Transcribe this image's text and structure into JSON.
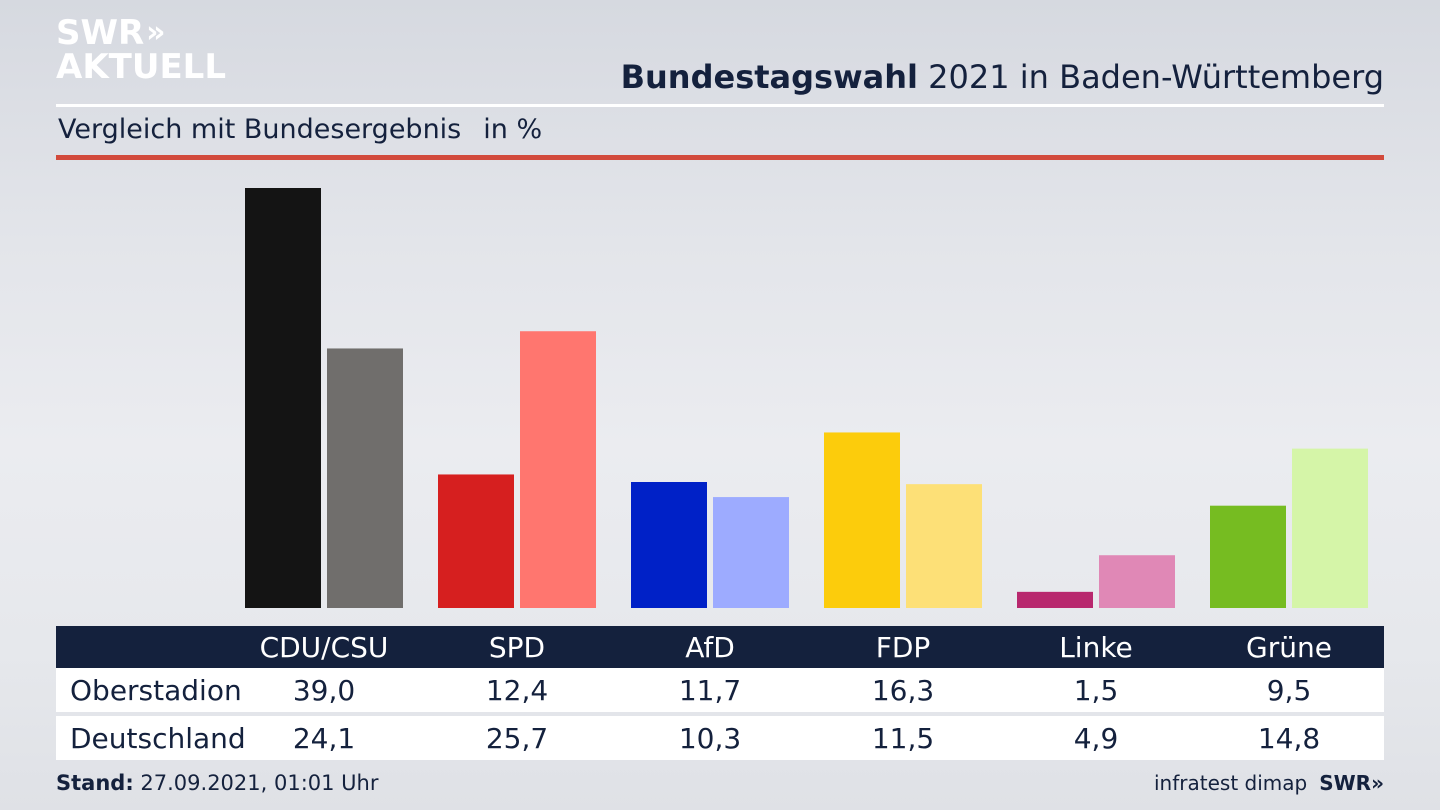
{
  "logo": {
    "line1": "SWR",
    "chevrons": "»",
    "line2": "AKTUELL"
  },
  "header": {
    "title_bold": "Bundestagswahl",
    "title_rest": " 2021 in Baden-Württemberg",
    "subtitle": "Vergleich mit Bundesergebnis",
    "unit": "in %"
  },
  "footer": {
    "stand_label": "Stand:",
    "stand_value": " 27.09.2021, 01:01 Uhr",
    "source": "infratest dimap",
    "brand": "SWR»"
  },
  "chart_data": {
    "type": "bar",
    "title": "Bundestagswahl 2021 in Baden-Württemberg",
    "subtitle": "Vergleich mit Bundesergebnis in %",
    "categories": [
      "CDU/CSU",
      "SPD",
      "AfD",
      "FDP",
      "Linke",
      "Grüne"
    ],
    "series": [
      {
        "name": "Oberstadion",
        "values": [
          39.0,
          12.4,
          11.7,
          16.3,
          1.5,
          9.5
        ],
        "labels": [
          "39,0",
          "12,4",
          "11,7",
          "16,3",
          "1,5",
          "9,5"
        ],
        "colors": [
          "#141414",
          "#d61f1f",
          "#0021c7",
          "#fccc0c",
          "#b8286e",
          "#76bc21"
        ]
      },
      {
        "name": "Deutschland",
        "values": [
          24.1,
          25.7,
          10.3,
          11.5,
          4.9,
          14.8
        ],
        "labels": [
          "24,1",
          "25,7",
          "10,3",
          "11,5",
          "4,9",
          "14,8"
        ],
        "colors": [
          "#706e6c",
          "#ff766f",
          "#9dabff",
          "#fde077",
          "#e088b6",
          "#d5f5a8"
        ]
      }
    ],
    "ylim": [
      0,
      39
    ]
  }
}
